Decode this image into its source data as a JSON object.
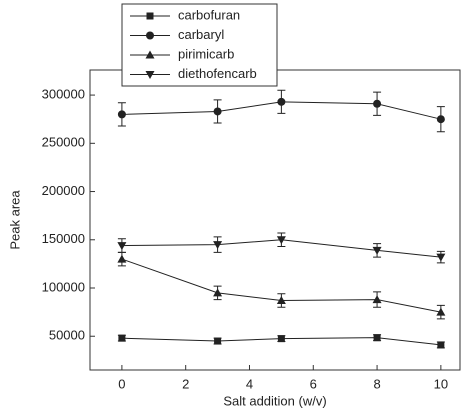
{
  "chart_data": {
    "type": "line",
    "x_label": "Salt addition (w/v)",
    "y_label": "Peak area",
    "x": [
      0,
      3,
      5,
      8,
      10
    ],
    "xlim": [
      -1,
      10.6
    ],
    "xticks": [
      0,
      2,
      4,
      6,
      8,
      10
    ],
    "ylim": [
      15000,
      326000
    ],
    "yticks": [
      50000,
      100000,
      150000,
      200000,
      250000,
      300000
    ],
    "series": [
      {
        "name": "carbofuran",
        "color": "#222222",
        "marker": "square",
        "values": [
          48000,
          45000,
          47500,
          48500,
          41000
        ],
        "errors": [
          3000,
          3000,
          3000,
          3000,
          3000
        ]
      },
      {
        "name": "carbaryl",
        "color": "#222222",
        "marker": "circle",
        "values": [
          280000,
          283000,
          293000,
          291000,
          275000
        ],
        "errors": [
          12000,
          12000,
          12000,
          12000,
          13000
        ]
      },
      {
        "name": "pirimicarb",
        "color": "#222222",
        "marker": "triangle-up",
        "values": [
          130000,
          95000,
          87000,
          88000,
          75000
        ],
        "errors": [
          7000,
          7000,
          7000,
          8000,
          7000
        ]
      },
      {
        "name": "diethofencarb",
        "color": "#222222",
        "marker": "triangle-down",
        "values": [
          144000,
          145000,
          150000,
          139000,
          132000
        ],
        "errors": [
          7000,
          8000,
          7000,
          7000,
          6000
        ]
      }
    ]
  }
}
